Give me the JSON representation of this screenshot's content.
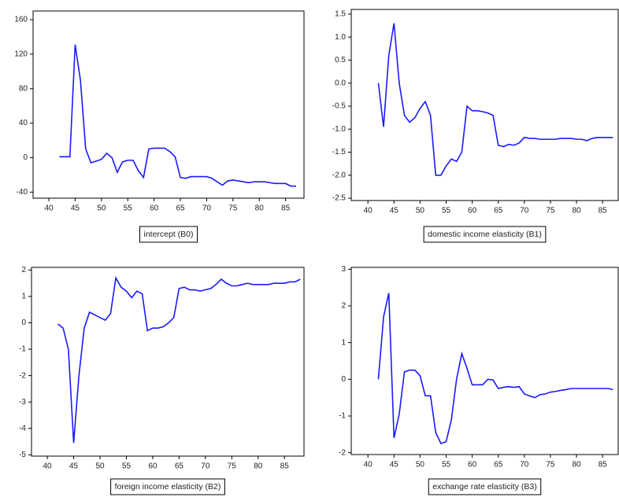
{
  "chart_data": [
    {
      "type": "line",
      "title": "intercept (B0)",
      "color": "#1a1aff",
      "x": [
        42,
        43,
        44,
        45,
        46,
        47,
        48,
        49,
        50,
        51,
        52,
        53,
        54,
        55,
        56,
        57,
        58,
        59,
        60,
        61,
        62,
        63,
        64,
        65,
        66,
        67,
        68,
        69,
        70,
        71,
        72,
        73,
        74,
        75,
        76,
        77,
        78,
        79,
        80,
        81,
        82,
        83,
        84,
        85,
        86,
        87
      ],
      "values": [
        1,
        1,
        1,
        131,
        90,
        10,
        -6,
        -4,
        -2,
        5,
        0,
        -17,
        -5,
        -3,
        -3,
        -15,
        -23,
        10,
        11,
        11,
        11,
        7,
        1,
        -23,
        -24,
        -22,
        -22,
        -22,
        -22,
        -24,
        -28,
        -32,
        -27,
        -26,
        -27,
        -28,
        -29,
        -28,
        -28,
        -28,
        -29,
        -30,
        -30,
        -30,
        -33,
        -33
      ],
      "xlim": [
        37,
        88.5
      ],
      "xticks": [
        40,
        45,
        50,
        55,
        60,
        65,
        70,
        75,
        80,
        85
      ],
      "ylim": [
        -47,
        170
      ],
      "yticks": [
        -40,
        0,
        40,
        80,
        120,
        160
      ]
    },
    {
      "type": "line",
      "title": "domestic income elasticity (B1)",
      "color": "#1a1aff",
      "x": [
        42,
        43,
        44,
        45,
        46,
        47,
        48,
        49,
        50,
        51,
        52,
        53,
        54,
        55,
        56,
        57,
        58,
        59,
        60,
        61,
        62,
        63,
        64,
        65,
        66,
        67,
        68,
        69,
        70,
        71,
        72,
        73,
        74,
        75,
        76,
        77,
        78,
        79,
        80,
        81,
        82,
        83,
        84,
        85,
        86,
        87
      ],
      "values": [
        0.0,
        -0.95,
        0.6,
        1.3,
        0.0,
        -0.7,
        -0.85,
        -0.75,
        -0.55,
        -0.4,
        -0.7,
        -2.0,
        -2.0,
        -1.8,
        -1.65,
        -1.7,
        -1.5,
        -0.5,
        -0.6,
        -0.6,
        -0.62,
        -0.65,
        -0.7,
        -1.35,
        -1.38,
        -1.33,
        -1.35,
        -1.3,
        -1.18,
        -1.2,
        -1.2,
        -1.22,
        -1.22,
        -1.22,
        -1.22,
        -1.2,
        -1.2,
        -1.2,
        -1.22,
        -1.22,
        -1.25,
        -1.2,
        -1.18,
        -1.18,
        -1.18,
        -1.18
      ],
      "xlim": [
        36.8,
        88
      ],
      "xticks": [
        40,
        45,
        50,
        55,
        60,
        65,
        70,
        75,
        80,
        85
      ],
      "ylim": [
        -2.55,
        1.6
      ],
      "yticks": [
        {
          "value": -2.5,
          "label": "-2.5"
        },
        {
          "value": -2,
          "label": "-2.0"
        },
        {
          "value": -1.5,
          "label": "-1.5"
        },
        {
          "value": -1,
          "label": "-1.0"
        },
        {
          "value": -0.5,
          "label": "-0.5"
        },
        {
          "value": 0,
          "label": "0.0"
        },
        {
          "value": 0.5,
          "label": "0.5"
        },
        {
          "value": 1,
          "label": "1.0"
        },
        {
          "value": 1.5,
          "label": "1.5"
        }
      ]
    },
    {
      "type": "line",
      "title": "foreign income elasticity (B2)",
      "color": "#1a1aff",
      "x": [
        42,
        43,
        44,
        45,
        46,
        47,
        48,
        49,
        50,
        51,
        52,
        53,
        54,
        55,
        56,
        57,
        58,
        59,
        60,
        61,
        62,
        63,
        64,
        65,
        66,
        67,
        68,
        69,
        70,
        71,
        72,
        73,
        74,
        75,
        76,
        77,
        78,
        79,
        80,
        81,
        82,
        83,
        84,
        85,
        86,
        87,
        88
      ],
      "values": [
        -0.05,
        -0.2,
        -1.0,
        -4.55,
        -2.0,
        -0.2,
        0.4,
        0.3,
        0.2,
        0.1,
        0.35,
        1.7,
        1.35,
        1.2,
        0.95,
        1.2,
        1.1,
        -0.3,
        -0.2,
        -0.2,
        -0.15,
        0.0,
        0.2,
        1.3,
        1.35,
        1.25,
        1.25,
        1.2,
        1.25,
        1.3,
        1.45,
        1.65,
        1.5,
        1.4,
        1.4,
        1.45,
        1.5,
        1.45,
        1.45,
        1.45,
        1.45,
        1.5,
        1.5,
        1.5,
        1.55,
        1.55,
        1.65
      ],
      "xlim": [
        37,
        88.7
      ],
      "xticks": [
        40,
        45,
        50,
        55,
        60,
        65,
        70,
        75,
        80,
        85
      ],
      "ylim": [
        -5.05,
        2.1
      ],
      "yticks": [
        -5,
        -4,
        -3,
        -2,
        -1,
        0,
        1,
        2
      ]
    },
    {
      "type": "line",
      "title": "exchange rate elasticity (B3)",
      "color": "#1a1aff",
      "x": [
        42,
        43,
        44,
        45,
        46,
        47,
        48,
        49,
        50,
        51,
        52,
        53,
        54,
        55,
        56,
        57,
        58,
        59,
        60,
        61,
        62,
        63,
        64,
        65,
        66,
        67,
        68,
        69,
        70,
        71,
        72,
        73,
        74,
        75,
        76,
        77,
        78,
        79,
        80,
        81,
        82,
        83,
        84,
        85,
        86,
        87
      ],
      "values": [
        0.0,
        1.7,
        2.35,
        -1.6,
        -0.95,
        0.2,
        0.25,
        0.25,
        0.1,
        -0.45,
        -0.45,
        -1.45,
        -1.75,
        -1.7,
        -1.1,
        0.0,
        0.7,
        0.3,
        -0.15,
        -0.15,
        -0.15,
        0.0,
        -0.02,
        -0.25,
        -0.22,
        -0.2,
        -0.22,
        -0.2,
        -0.4,
        -0.45,
        -0.5,
        -0.42,
        -0.4,
        -0.35,
        -0.33,
        -0.3,
        -0.28,
        -0.25,
        -0.25,
        -0.25,
        -0.25,
        -0.25,
        -0.25,
        -0.25,
        -0.25,
        -0.28
      ],
      "xlim": [
        36.8,
        88
      ],
      "xticks": [
        40,
        45,
        50,
        55,
        60,
        65,
        70,
        75,
        80,
        85
      ],
      "ylim": [
        -2.05,
        3.05
      ],
      "yticks": [
        -2,
        -1,
        0,
        1,
        2,
        3
      ]
    }
  ]
}
